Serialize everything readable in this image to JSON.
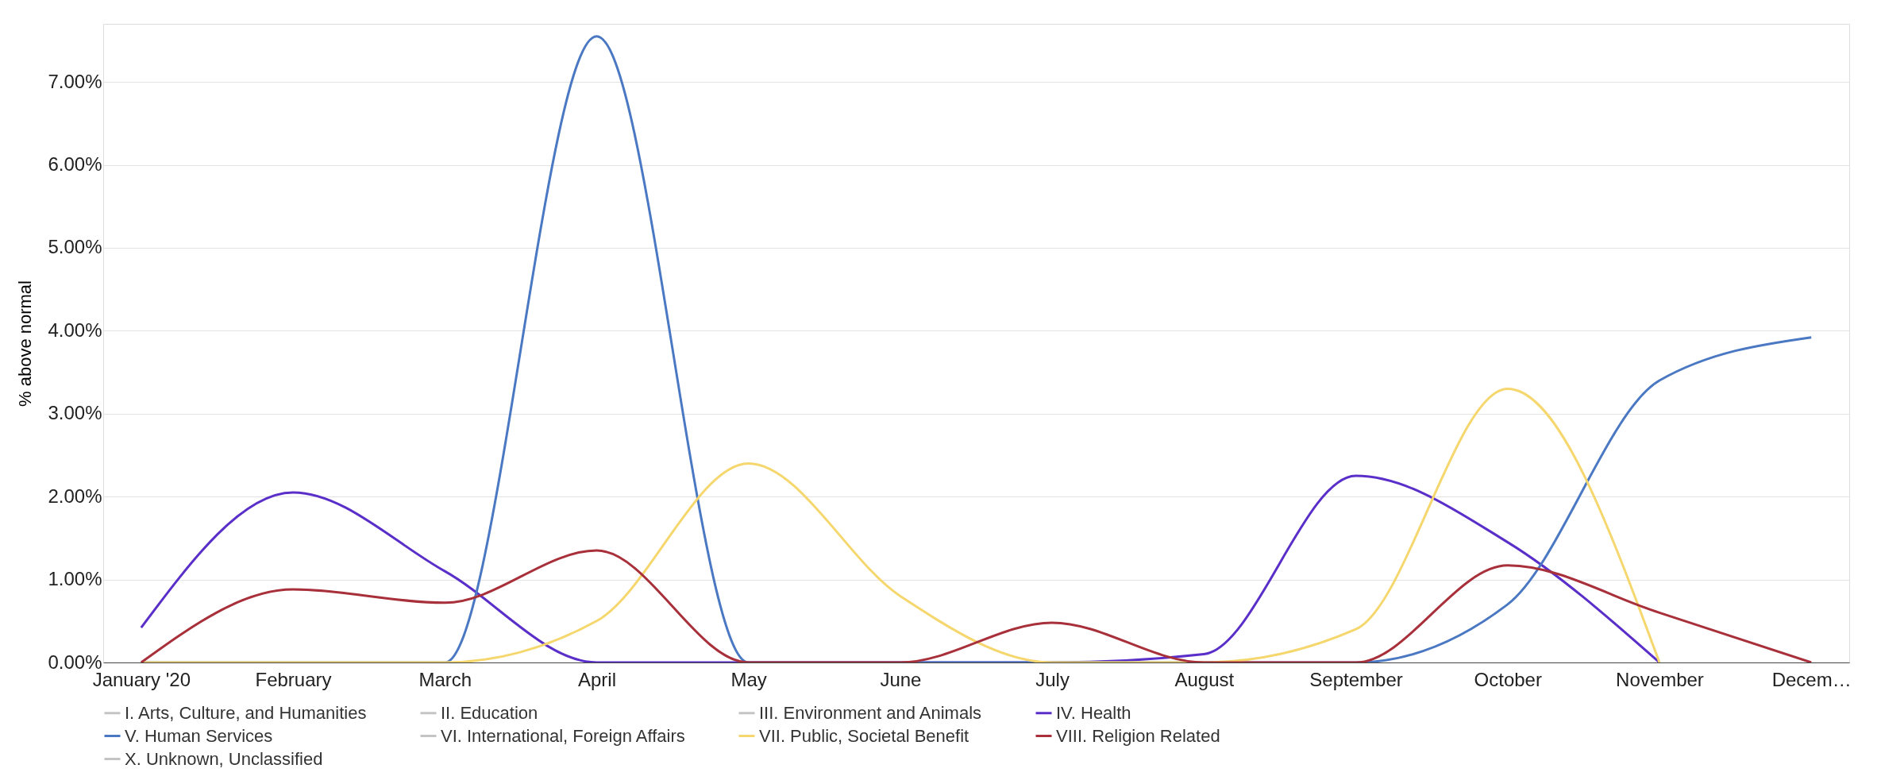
{
  "chart_data": {
    "type": "line",
    "ylabel": "% above normal",
    "categories": [
      "January '20",
      "February",
      "March",
      "April",
      "May",
      "June",
      "July",
      "August",
      "September",
      "October",
      "November",
      "Decem…"
    ],
    "ylim": [
      0,
      7.7
    ],
    "yticks": [
      {
        "value": 0,
        "label": "0.00%"
      },
      {
        "value": 1,
        "label": "1.00%"
      },
      {
        "value": 2,
        "label": "2.00%"
      },
      {
        "value": 3,
        "label": "3.00%"
      },
      {
        "value": 4,
        "label": "4.00%"
      },
      {
        "value": 5,
        "label": "5.00%"
      },
      {
        "value": 6,
        "label": "6.00%"
      },
      {
        "value": 7,
        "label": "7.00%"
      }
    ],
    "grid": "y",
    "legend": "bottom",
    "marker": "none",
    "line_style": "solid",
    "series": [
      {
        "name": "I. Arts, Culture, and Humanities",
        "color": "#c4c4c4",
        "values": [
          null,
          null,
          null,
          null,
          null,
          null,
          null,
          null,
          null,
          null,
          null,
          null
        ]
      },
      {
        "name": "II. Education",
        "color": "#c4c4c4",
        "values": [
          null,
          null,
          null,
          null,
          null,
          null,
          null,
          null,
          null,
          null,
          null,
          null
        ]
      },
      {
        "name": "III. Environment and Animals",
        "color": "#c4c4c4",
        "values": [
          null,
          null,
          null,
          null,
          null,
          null,
          null,
          null,
          null,
          null,
          null,
          null
        ]
      },
      {
        "name": "IV. Health",
        "color": "#5a2fc9",
        "values": [
          0.42,
          2.05,
          1.1,
          0,
          0,
          0,
          0,
          0.1,
          2.25,
          1.45,
          0,
          null
        ]
      },
      {
        "name": "V. Human Services",
        "color": "#4a78c2",
        "values": [
          0,
          0,
          0,
          7.55,
          0,
          0,
          0,
          0,
          0,
          0.7,
          3.4,
          3.92
        ]
      },
      {
        "name": "VI. International, Foreign Affairs",
        "color": "#c4c4c4",
        "values": [
          null,
          null,
          null,
          null,
          null,
          null,
          null,
          null,
          null,
          null,
          null,
          null
        ]
      },
      {
        "name": "VII. Public, Societal Benefit",
        "color": "#f5d76e",
        "values": [
          0,
          0,
          0,
          0.5,
          2.4,
          0.8,
          0,
          0,
          0.4,
          3.3,
          0,
          null
        ]
      },
      {
        "name": "VIII. Religion Related",
        "color": "#a8303a",
        "values": [
          0,
          0.88,
          0.72,
          1.35,
          0,
          0,
          0.48,
          0,
          0,
          1.17,
          0.6,
          0
        ]
      },
      {
        "name": "X. Unknown, Unclassified",
        "color": "#c4c4c4",
        "values": [
          null,
          null,
          null,
          null,
          null,
          null,
          null,
          null,
          null,
          null,
          null,
          null
        ]
      }
    ]
  }
}
